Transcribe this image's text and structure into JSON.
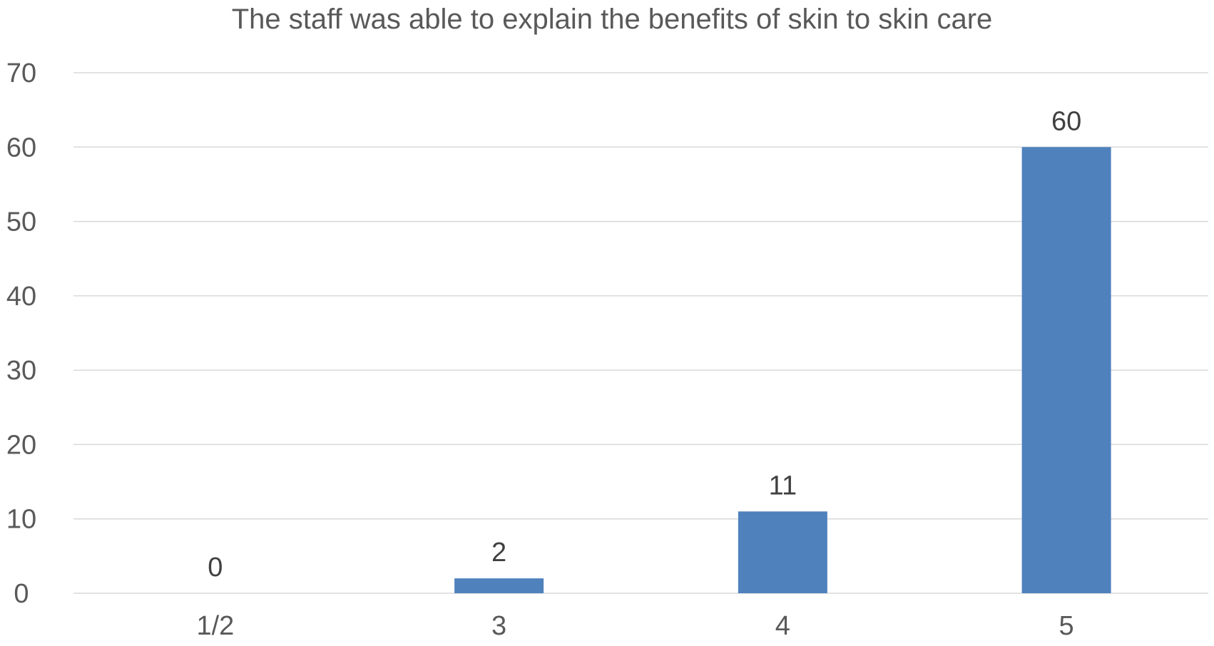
{
  "chart_data": {
    "type": "bar",
    "title": "The staff was able to explain the benefits of skin to skin care",
    "xlabel": "",
    "ylabel": "",
    "categories": [
      "1/2",
      "3",
      "4",
      "5"
    ],
    "values": [
      0,
      2,
      11,
      60
    ],
    "data_labels": [
      "0",
      "2",
      "11",
      "60"
    ],
    "ylim": [
      0,
      70
    ],
    "yticks": [
      0,
      10,
      20,
      30,
      40,
      50,
      60,
      70
    ],
    "grid": true,
    "legend": "none",
    "colors": {
      "bar": "#4f81bd",
      "grid": "#d9d9d9",
      "tick_text": "#595959",
      "label_text": "#404040"
    }
  }
}
